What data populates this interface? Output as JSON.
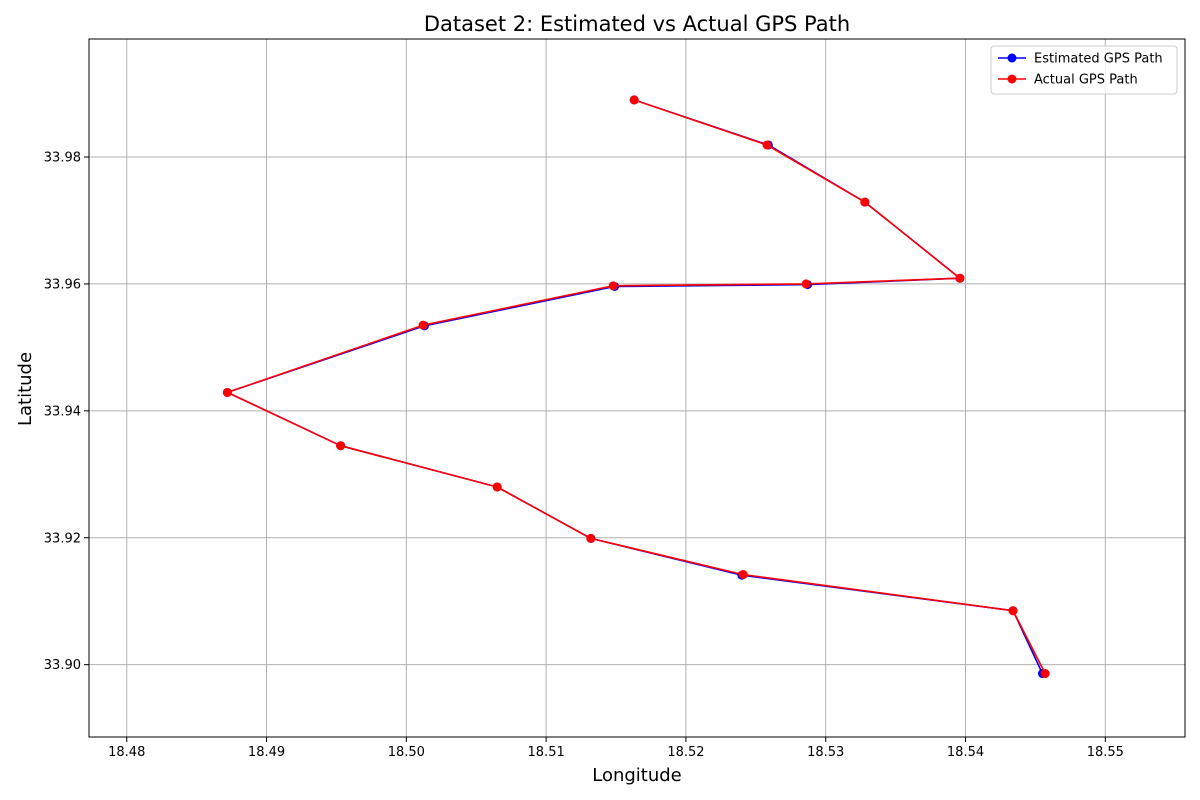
{
  "chart_data": {
    "type": "line",
    "title": "Dataset 2: Estimated vs Actual GPS Path",
    "xlabel": "Longitude",
    "ylabel": "Latitude",
    "xlim": [
      18.4773,
      18.5557
    ],
    "ylim": [
      33.8886,
      33.9986
    ],
    "xticks": [
      18.48,
      18.49,
      18.5,
      18.51,
      18.52,
      18.53,
      18.54,
      18.55
    ],
    "yticks": [
      33.9,
      33.92,
      33.94,
      33.96,
      33.98
    ],
    "xtick_labels": [
      "18.48",
      "18.49",
      "18.50",
      "18.51",
      "18.52",
      "18.53",
      "18.54",
      "18.55"
    ],
    "ytick_labels": [
      "33.90",
      "33.92",
      "33.94",
      "33.96",
      "33.98"
    ],
    "grid": true,
    "legend_position": "top-right",
    "series": [
      {
        "name": "Estimated GPS Path",
        "color": "#0000ff",
        "x": [
          18.5163,
          18.5259,
          18.5328,
          18.5396,
          18.5287,
          18.5149,
          18.5013,
          18.4872,
          18.4953,
          18.5065,
          18.5132,
          18.524,
          18.5434,
          18.5455
        ],
        "y": [
          33.989,
          33.9819,
          33.9729,
          33.9609,
          33.9599,
          33.9596,
          33.9534,
          33.9429,
          33.9345,
          33.928,
          33.9199,
          33.9141,
          33.9085,
          33.8986
        ]
      },
      {
        "name": "Actual GPS Path",
        "color": "#ff0000",
        "x": [
          18.5163,
          18.5258,
          18.5328,
          18.5396,
          18.5286,
          18.5148,
          18.5012,
          18.4872,
          18.4953,
          18.5065,
          18.5132,
          18.5241,
          18.5434,
          18.5457
        ],
        "y": [
          33.989,
          33.9819,
          33.9729,
          33.9609,
          33.96,
          33.9597,
          33.9535,
          33.9429,
          33.9345,
          33.928,
          33.9199,
          33.9142,
          33.9085,
          33.8986
        ]
      }
    ]
  }
}
